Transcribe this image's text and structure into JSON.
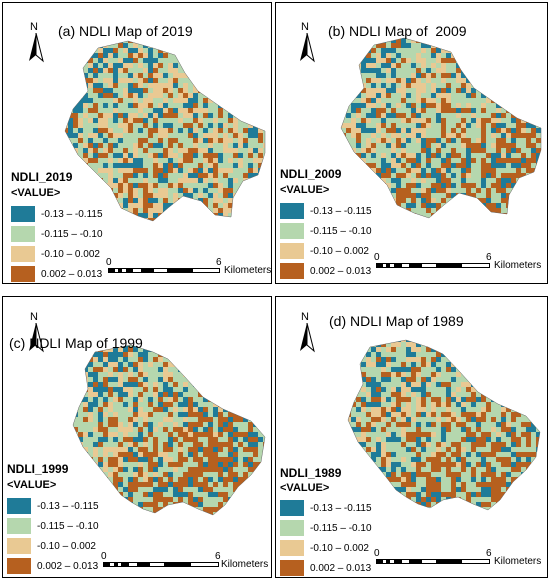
{
  "colors": {
    "class1": "#1f7b98",
    "class2": "#b5d7ae",
    "class3": "#e9c993",
    "class4": "#b6601f"
  },
  "panels": [
    {
      "title": "(a) NDLI Map of 2019",
      "north": "N",
      "legend": {
        "title": "NDLI_2019",
        "subtitle": "<VALUE>",
        "items": [
          "-0.13 – -0.115",
          "-0.115 – -0.10",
          "-0.10 – 0.002",
          "0.002 – 0.013"
        ]
      },
      "scale": {
        "start": "0",
        "end": "6",
        "unit": "Kilometers"
      }
    },
    {
      "title": "(b) NDLI Map of  2009",
      "north": "N",
      "legend": {
        "title": "NDLI_2009",
        "subtitle": "<VALUE>",
        "items": [
          "-0.13 – -0.115",
          "-0.115 – -0.10",
          "-0.10 – 0.002",
          "0.002 – 0.013"
        ]
      },
      "scale": {
        "start": "0",
        "end": "6",
        "unit": "Kilometers"
      }
    },
    {
      "title": "(c) NDLI Map of 1999",
      "north": "N",
      "legend": {
        "title": "NDLI_1999",
        "subtitle": "<VALUE>",
        "items": [
          "-0.13 – -0.115",
          "-0.115 – -0.10",
          "-0.10 – 0.002",
          "0.002 – 0.013"
        ]
      },
      "scale": {
        "start": "0",
        "end": "6",
        "unit": "Kilometers"
      }
    },
    {
      "title": "(d) NDLI Map of 1989",
      "north": "N",
      "legend": {
        "title": "NDLI_1989",
        "subtitle": "<VALUE>",
        "items": [
          "-0.13 – -0.115",
          "-0.115 – -0.10",
          "-0.10 – 0.002",
          "0.002 – 0.013"
        ]
      },
      "scale": {
        "start": "0",
        "end": "6",
        "unit": "Kilometers"
      }
    }
  ]
}
